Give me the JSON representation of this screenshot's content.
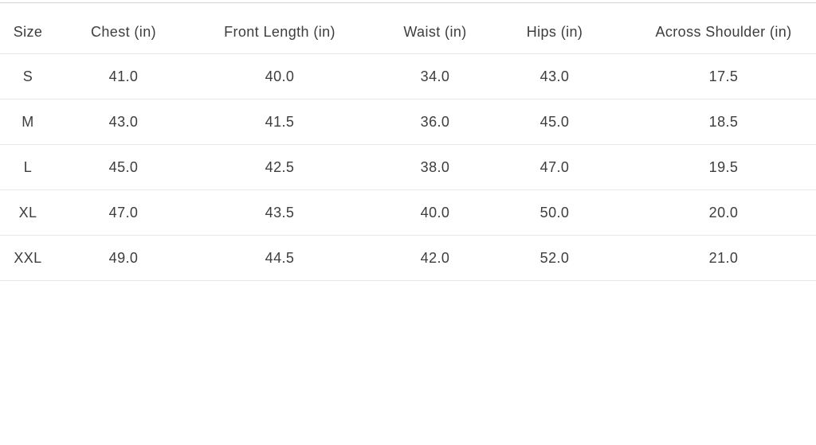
{
  "chart_data": {
    "type": "table",
    "columns": [
      "Size",
      "Chest (in)",
      "Front Length (in)",
      "Waist (in)",
      "Hips (in)",
      "Across Shoulder (in)"
    ],
    "rows": [
      [
        "S",
        "41.0",
        "40.0",
        "34.0",
        "43.0",
        "17.5"
      ],
      [
        "M",
        "43.0",
        "41.5",
        "36.0",
        "45.0",
        "18.5"
      ],
      [
        "L",
        "45.0",
        "42.5",
        "38.0",
        "47.0",
        "19.5"
      ],
      [
        "XL",
        "47.0",
        "43.5",
        "40.0",
        "50.0",
        "20.0"
      ],
      [
        "XXL",
        "49.0",
        "44.5",
        "42.0",
        "52.0",
        "21.0"
      ]
    ],
    "layout": {
      "grid": "horizontal-row-separators-only",
      "header_position": "top"
    }
  },
  "colors": {
    "text": "#3d3d3d",
    "row_separator": "#e8e8e8",
    "top_border": "#d2d2d2",
    "background": "#ffffff"
  }
}
